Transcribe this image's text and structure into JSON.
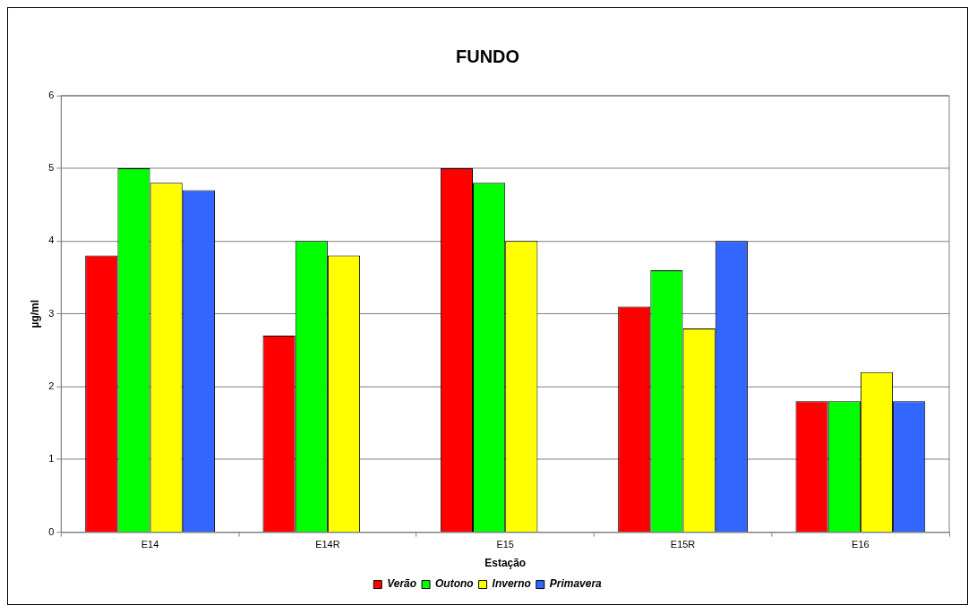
{
  "chart_data": {
    "type": "bar",
    "title": "FUNDO",
    "xlabel": "Estação",
    "ylabel": "µg/ml",
    "categories": [
      "E14",
      "E14R",
      "E15",
      "E15R",
      "E16"
    ],
    "series": [
      {
        "name": "Verão",
        "color": "#ff0000",
        "values": [
          3.8,
          2.7,
          5.0,
          3.1,
          1.8
        ]
      },
      {
        "name": "Outono",
        "color": "#00ff00",
        "values": [
          5.0,
          4.0,
          4.8,
          3.6,
          1.8
        ]
      },
      {
        "name": "Inverno",
        "color": "#ffff00",
        "values": [
          4.8,
          3.8,
          4.0,
          2.8,
          2.2
        ]
      },
      {
        "name": "Primavera",
        "color": "#3366ff",
        "values": [
          4.7,
          null,
          null,
          4.0,
          1.8
        ]
      }
    ],
    "ylim": [
      0,
      6
    ],
    "yticks": [
      0,
      1,
      2,
      3,
      4,
      5,
      6
    ],
    "grid": "y",
    "legend": "bottom"
  }
}
